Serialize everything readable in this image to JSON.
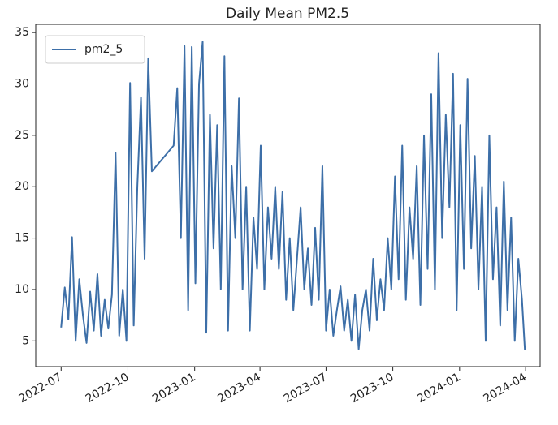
{
  "chart_data": {
    "type": "line",
    "title": "Daily Mean PM2.5",
    "x": [
      "2022-07-01",
      "2022-07-06",
      "2022-07-11",
      "2022-07-16",
      "2022-07-21",
      "2022-07-26",
      "2022-07-31",
      "2022-08-05",
      "2022-08-10",
      "2022-08-15",
      "2022-08-20",
      "2022-08-25",
      "2022-08-30",
      "2022-09-04",
      "2022-09-09",
      "2022-09-14",
      "2022-09-19",
      "2022-09-24",
      "2022-09-29",
      "2022-10-04",
      "2022-10-09",
      "2022-10-14",
      "2022-10-19",
      "2022-10-24",
      "2022-10-29",
      "2022-11-03",
      "2022-12-03",
      "2022-12-08",
      "2022-12-13",
      "2022-12-18",
      "2022-12-23",
      "2022-12-28",
      "2023-01-02",
      "2023-01-07",
      "2023-01-12",
      "2023-01-17",
      "2023-01-22",
      "2023-01-27",
      "2023-02-01",
      "2023-02-06",
      "2023-02-11",
      "2023-02-16",
      "2023-02-21",
      "2023-02-26",
      "2023-03-03",
      "2023-03-08",
      "2023-03-13",
      "2023-03-18",
      "2023-03-23",
      "2023-03-28",
      "2023-04-02",
      "2023-04-07",
      "2023-04-12",
      "2023-04-17",
      "2023-04-22",
      "2023-04-27",
      "2023-05-02",
      "2023-05-07",
      "2023-05-12",
      "2023-05-17",
      "2023-05-22",
      "2023-05-27",
      "2023-06-01",
      "2023-06-06",
      "2023-06-11",
      "2023-06-16",
      "2023-06-21",
      "2023-06-26",
      "2023-07-01",
      "2023-07-06",
      "2023-07-11",
      "2023-07-16",
      "2023-07-21",
      "2023-07-26",
      "2023-07-31",
      "2023-08-05",
      "2023-08-10",
      "2023-08-15",
      "2023-08-20",
      "2023-08-25",
      "2023-08-30",
      "2023-09-04",
      "2023-09-09",
      "2023-09-14",
      "2023-09-19",
      "2023-09-24",
      "2023-09-29",
      "2023-10-04",
      "2023-10-09",
      "2023-10-14",
      "2023-10-19",
      "2023-10-24",
      "2023-10-29",
      "2023-11-03",
      "2023-11-08",
      "2023-11-13",
      "2023-11-18",
      "2023-11-23",
      "2023-11-28",
      "2023-12-03",
      "2023-12-08",
      "2023-12-13",
      "2023-12-18",
      "2023-12-23",
      "2023-12-28",
      "2024-01-02",
      "2024-01-07",
      "2024-01-12",
      "2024-01-17",
      "2024-01-22",
      "2024-01-27",
      "2024-02-01",
      "2024-02-06",
      "2024-02-11",
      "2024-02-16",
      "2024-02-21",
      "2024-02-26",
      "2024-03-02",
      "2024-03-07",
      "2024-03-12",
      "2024-03-17",
      "2024-03-22",
      "2024-03-27",
      "2024-03-31"
    ],
    "series": [
      {
        "name": "pm2_5",
        "color": "#3d6fa8",
        "values": [
          6.3,
          10.2,
          7.1,
          15.1,
          5.0,
          11.0,
          7.5,
          4.8,
          9.8,
          6.0,
          11.5,
          5.5,
          9.0,
          6.2,
          9.5,
          23.3,
          5.5,
          10.0,
          5.0,
          30.1,
          6.5,
          20.0,
          28.7,
          13.0,
          32.5,
          21.5,
          24.0,
          29.6,
          15.0,
          33.7,
          8.0,
          33.6,
          10.6,
          30.0,
          34.1,
          5.8,
          27.0,
          14.0,
          26.0,
          10.0,
          32.7,
          6.0,
          22.0,
          15.0,
          28.6,
          10.0,
          20.0,
          6.0,
          17.0,
          12.0,
          24.0,
          10.0,
          18.0,
          13.0,
          20.0,
          12.0,
          19.5,
          9.0,
          15.0,
          8.0,
          13.0,
          18.0,
          10.0,
          14.0,
          8.5,
          16.0,
          9.0,
          22.0,
          6.0,
          10.0,
          5.5,
          8.0,
          10.3,
          6.0,
          9.0,
          5.0,
          9.5,
          4.2,
          8.0,
          10.0,
          6.0,
          13.0,
          7.0,
          11.0,
          8.0,
          15.0,
          10.0,
          21.0,
          11.0,
          24.0,
          9.0,
          18.0,
          13.0,
          22.0,
          8.5,
          25.0,
          12.0,
          29.0,
          10.0,
          33.0,
          15.0,
          27.0,
          18.0,
          31.0,
          8.0,
          26.0,
          12.0,
          30.5,
          14.0,
          23.0,
          10.0,
          20.0,
          5.0,
          25.0,
          11.0,
          18.0,
          6.5,
          20.5,
          8.0,
          17.0,
          5.0,
          13.0,
          9.0,
          4.1
        ]
      }
    ],
    "xlim": [
      "2022-05-27",
      "2024-04-21"
    ],
    "xticks": [
      "2022-07",
      "2022-10",
      "2023-01",
      "2023-04",
      "2023-07",
      "2023-10",
      "2024-01",
      "2024-04"
    ],
    "ylim": [
      2.5,
      35.8
    ],
    "yticks": [
      5,
      10,
      15,
      20,
      25,
      30,
      35
    ],
    "legend": "upper left"
  }
}
